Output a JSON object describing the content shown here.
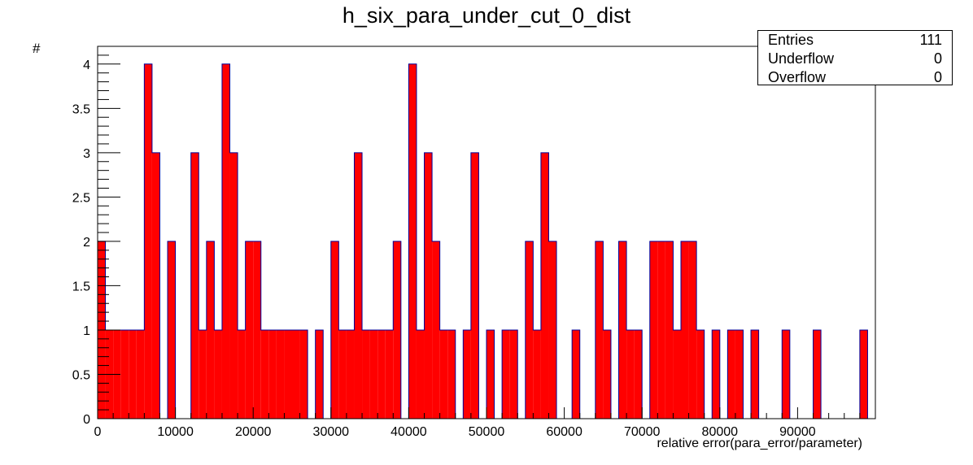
{
  "chart_data": {
    "type": "bar",
    "title": "h_six_para_under_cut_0_dist",
    "xlabel": "relative error(para_error/parameter)",
    "ylabel": "#",
    "xlim": [
      0,
      100000
    ],
    "ylim": [
      0,
      4.2
    ],
    "bin_width": 1000,
    "x_ticks": [
      0,
      10000,
      20000,
      30000,
      40000,
      50000,
      60000,
      70000,
      80000,
      90000
    ],
    "y_ticks": [
      0,
      0.5,
      1,
      1.5,
      2,
      2.5,
      3,
      3.5,
      4
    ],
    "y_tick_labels": [
      "0",
      "0.5",
      "1",
      "1.5",
      "2",
      "2.5",
      "3",
      "3.5",
      "4"
    ],
    "fill_color": "#ff0000",
    "line_color": "#000099",
    "grid": false,
    "legend": "none",
    "values": [
      2,
      1,
      1,
      1,
      1,
      1,
      4,
      3,
      0,
      2,
      0,
      0,
      3,
      1,
      2,
      1,
      4,
      3,
      1,
      2,
      2,
      1,
      1,
      1,
      1,
      1,
      1,
      0,
      1,
      0,
      2,
      1,
      1,
      3,
      1,
      1,
      1,
      1,
      2,
      0,
      4,
      1,
      3,
      2,
      1,
      1,
      0,
      1,
      3,
      0,
      1,
      0,
      1,
      1,
      0,
      2,
      1,
      3,
      2,
      0,
      0,
      1,
      0,
      0,
      2,
      1,
      0,
      2,
      1,
      1,
      0,
      2,
      2,
      2,
      1,
      2,
      2,
      1,
      0,
      1,
      0,
      1,
      1,
      0,
      1,
      0,
      0,
      0,
      1,
      0,
      0,
      0,
      1,
      0,
      0,
      0,
      0,
      0,
      1
    ]
  },
  "stats": {
    "entries_label": "Entries",
    "entries_value": "111",
    "underflow_label": "Underflow",
    "underflow_value": "0",
    "overflow_label": "Overflow",
    "overflow_value": "0"
  }
}
